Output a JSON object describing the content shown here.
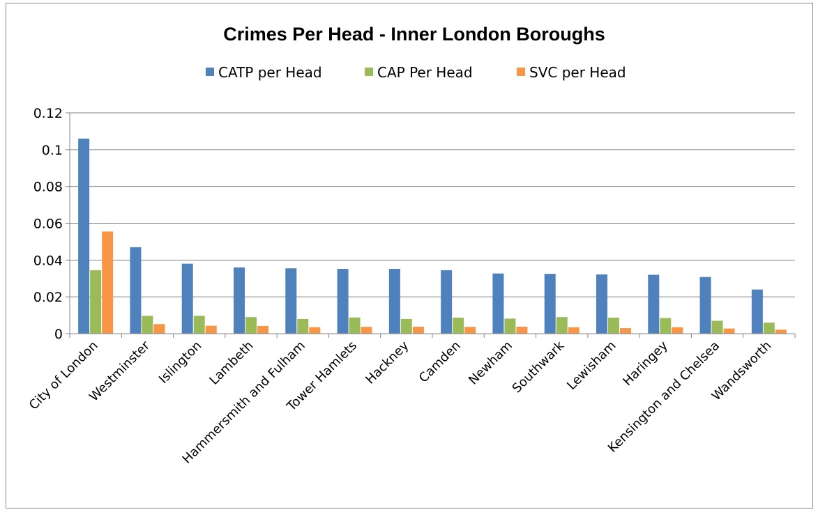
{
  "chart_data": {
    "type": "bar",
    "title": "Crimes Per Head - Inner London Boroughs",
    "xlabel": "",
    "ylabel": "",
    "ylim": [
      0,
      0.12
    ],
    "yticks": [
      "0",
      "0.02",
      "0.04",
      "0.06",
      "0.08",
      "0.1",
      "0.12"
    ],
    "grid": true,
    "legend_position": "top",
    "categories": [
      "City of London",
      "Westminster",
      "Islington",
      "Lambeth",
      "Hammersmith and Fulham",
      "Tower Hamlets",
      "Hackney",
      "Camden",
      "Newham",
      "Southwark",
      "Lewisham",
      "Haringey",
      "Kensington and Chelsea",
      "Wandsworth"
    ],
    "series": [
      {
        "name": "CATP per Head",
        "color": "#4F81BD",
        "values": [
          0.106,
          0.047,
          0.038,
          0.036,
          0.0355,
          0.0352,
          0.0352,
          0.0345,
          0.0327,
          0.0325,
          0.0322,
          0.032,
          0.0308,
          0.024
        ]
      },
      {
        "name": "CAP Per Head",
        "color": "#9BBB59",
        "values": [
          0.0345,
          0.0097,
          0.0097,
          0.009,
          0.008,
          0.0088,
          0.008,
          0.0087,
          0.0082,
          0.009,
          0.0087,
          0.0085,
          0.007,
          0.006
        ]
      },
      {
        "name": "SVC per Head",
        "color": "#F79646",
        "values": [
          0.0555,
          0.0052,
          0.0043,
          0.0042,
          0.0035,
          0.0037,
          0.0038,
          0.0037,
          0.0038,
          0.0035,
          0.003,
          0.0035,
          0.0028,
          0.0022
        ]
      }
    ]
  }
}
